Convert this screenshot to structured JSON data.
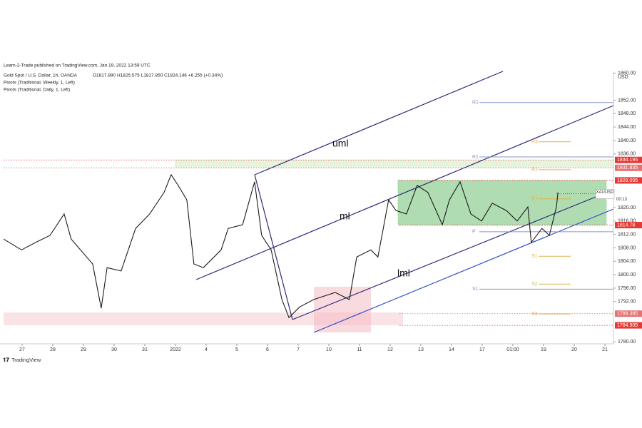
{
  "header": {
    "publisher": "Learn-2-Trade published on TradingView.com, Jan 19, 2022 13:59 UTC",
    "symbol": "Gold Spot / U.S. Dollar, 1h, OANDA",
    "ohlc": "O1817.890  H1825.575  L1817.850  C1824.146  +6.255 (+0.34%)",
    "indicators": [
      "Pivots (Traditional, Weekly, 1, Left)",
      "Pivots (Traditional, Daily, 1, Left)"
    ]
  },
  "chart_data": {
    "type": "line",
    "x": [
      -0.6,
      -0.02,
      0.44,
      0.91,
      1.37,
      1.6,
      2.3,
      2.58,
      2.77,
      3.23,
      3.7,
      4.16,
      4.63,
      4.86,
      5.09,
      5.37,
      5.6,
      5.91,
      6.49,
      6.72,
      7.19,
      7.58,
      7.81,
      8.12,
      8.47,
      8.7,
      9.05,
      9.51,
      10.21,
      10.67,
      10.91,
      11.37,
      11.6,
      11.95,
      12.19,
      12.53,
      12.88,
      13.23,
      13.7,
      13.93,
      14.28,
      14.63,
      14.98,
      15.33,
      15.79,
      16.14,
      16.49,
      16.6,
      16.95,
      17.19,
      17.42,
      17.47
    ],
    "series": [
      {
        "name": "XAUUSD",
        "color": "#1c1c1c",
        "values": [
          1810.6,
          1807.4,
          1809.6,
          1811.7,
          1818.1,
          1810.6,
          1803.2,
          1790.0,
          1802.1,
          1801.1,
          1813.8,
          1818.1,
          1824.5,
          1829.8,
          1826.6,
          1822.3,
          1803.2,
          1802.1,
          1807.4,
          1813.8,
          1814.9,
          1827.7,
          1811.7,
          1807.4,
          1792.6,
          1787.2,
          1790.4,
          1792.6,
          1794.7,
          1792.6,
          1805.3,
          1807.4,
          1805.3,
          1822.3,
          1819.1,
          1818.1,
          1826.6,
          1824.5,
          1814.9,
          1822.3,
          1827.7,
          1818.1,
          1816.0,
          1821.3,
          1819.1,
          1816.0,
          1820.2,
          1809.6,
          1813.8,
          1811.7,
          1820.2,
          1824.5
        ]
      }
    ],
    "xlim": [
      -0.72,
      19.28
    ],
    "xticks": [
      {
        "value": 0,
        "label": "27"
      },
      {
        "value": 1,
        "label": "28"
      },
      {
        "value": 2,
        "label": "29"
      },
      {
        "value": 3,
        "label": "30"
      },
      {
        "value": 4,
        "label": "31"
      },
      {
        "value": 5,
        "label": "2022"
      },
      {
        "value": 6,
        "label": "4"
      },
      {
        "value": 7,
        "label": "5"
      },
      {
        "value": 8,
        "label": "6"
      },
      {
        "value": 9,
        "label": "7"
      },
      {
        "value": 10,
        "label": "10"
      },
      {
        "value": 11,
        "label": "11"
      },
      {
        "value": 12,
        "label": "12"
      },
      {
        "value": 13,
        "label": "13"
      },
      {
        "value": 14,
        "label": "14"
      },
      {
        "value": 15,
        "label": "17"
      },
      {
        "value": 16,
        "label": "01:00"
      },
      {
        "value": 17,
        "label": "19"
      },
      {
        "value": 18,
        "label": "20"
      },
      {
        "value": 19,
        "label": "21"
      }
    ],
    "ylim": [
      1779.4,
      1860.6
    ],
    "yticks": [
      {
        "value": 1780,
        "label": "1780.00"
      },
      {
        "value": 1792,
        "label": "1792.00"
      },
      {
        "value": 1796,
        "label": "1796.00"
      },
      {
        "value": 1800,
        "label": "1800.00"
      },
      {
        "value": 1804,
        "label": "1804.00"
      },
      {
        "value": 1808,
        "label": "1808.00"
      },
      {
        "value": 1812,
        "label": "1812.00"
      },
      {
        "value": 1816,
        "label": "1816.00"
      },
      {
        "value": 1820,
        "label": "1820.00"
      },
      {
        "value": 1836,
        "label": "1836.00"
      },
      {
        "value": 1840,
        "label": "1840.00"
      },
      {
        "value": 1844,
        "label": "1844.00"
      },
      {
        "value": 1848,
        "label": "1848.00"
      },
      {
        "value": 1852,
        "label": "1852.00"
      },
      {
        "value": 1860,
        "label": "1860.00"
      }
    ],
    "y_unit": "USD",
    "price_levels": {
      "values": [
        1834.195,
        1831.835,
        1828.095,
        1814.78,
        1788.385,
        1784.905
      ],
      "colors": [
        "#e53935",
        "#e57373",
        "#e53935",
        "#e53935",
        "#e57373",
        "#e53935"
      ]
    },
    "current": {
      "countdown": "00:13",
      "value": 1824.146
    },
    "pivots": [
      {
        "label": "R2",
        "value": 1851.3,
        "color": "#8a93c9",
        "period": "weekly"
      },
      {
        "label": "R1",
        "value": 1835.1,
        "color": "#8a93c9",
        "period": "weekly"
      },
      {
        "label": "P",
        "value": 1812.8,
        "color": "#8a93c9",
        "period": "weekly"
      },
      {
        "label": "S1",
        "value": 1795.7,
        "color": "#8a93c9",
        "period": "weekly"
      },
      {
        "label": "R3",
        "value": 1839.6,
        "color": "#e0b050",
        "period": "daily"
      },
      {
        "label": "R2",
        "value": 1831.3,
        "color": "#e0b050",
        "period": "daily"
      },
      {
        "label": "R1",
        "value": 1822.6,
        "color": "#e0b050",
        "period": "daily"
      },
      {
        "label": "S1",
        "value": 1805.5,
        "color": "#e0b050",
        "period": "daily"
      },
      {
        "label": "S2",
        "value": 1797.2,
        "color": "#e0b050",
        "period": "daily"
      },
      {
        "label": "S3",
        "value": 1788.3,
        "color": "#e0b050",
        "period": "daily"
      }
    ],
    "annotations": [
      "uml",
      "ml",
      "lml"
    ]
  },
  "footer": {
    "brand": "TradingView"
  }
}
